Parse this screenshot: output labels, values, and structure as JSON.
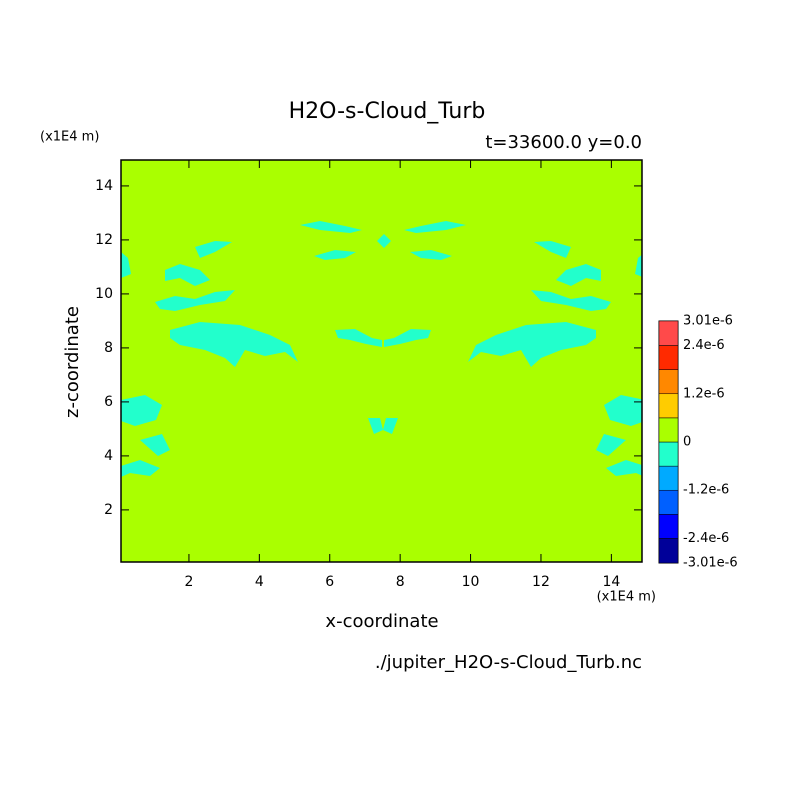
{
  "chart_data": {
    "type": "contour",
    "title": "H2O-s-Cloud_Turb",
    "subtitle": "t=33600.0 y=0.0",
    "x_label": "x-coordinate",
    "y_label": "z-coordinate",
    "x_unit": "(x1E4 m)",
    "y_unit": "(x1E4 m)",
    "source": "./jupiter_H2O-s-Cloud_Turb.nc",
    "xlim": [
      0.07,
      14.87
    ],
    "ylim": [
      0.07,
      14.96
    ],
    "xticks": [
      2,
      4,
      6,
      8,
      10,
      12,
      14
    ],
    "yticks": [
      2,
      4,
      6,
      8,
      10,
      12,
      14
    ],
    "colorbar": {
      "levels": [
        -3.01e-06,
        -2.4e-06,
        -1.8e-06,
        -1.2e-06,
        -6e-07,
        0,
        6e-07,
        1.2e-06,
        1.8e-06,
        2.4e-06,
        3.01e-06
      ],
      "colors": [
        "#000099",
        "#0000ff",
        "#0060ff",
        "#00aaff",
        "#22ffcc",
        "#aaff00",
        "#ffcc00",
        "#ff8800",
        "#ff2a00",
        "#ff4a4a"
      ],
      "ticks": [
        {
          "value": 3.01e-06,
          "label": "3.01e-6"
        },
        {
          "value": 2.4e-06,
          "label": "2.4e-6"
        },
        {
          "value": 1.2e-06,
          "label": "1.2e-6"
        },
        0,
        {
          "value": -1.2e-06,
          "label": "-1.2e-6"
        },
        {
          "value": -2.4e-06,
          "label": "-2.4e-6"
        },
        {
          "value": -3.01e-06,
          "label": "-3.01e-6"
        }
      ]
    }
  }
}
